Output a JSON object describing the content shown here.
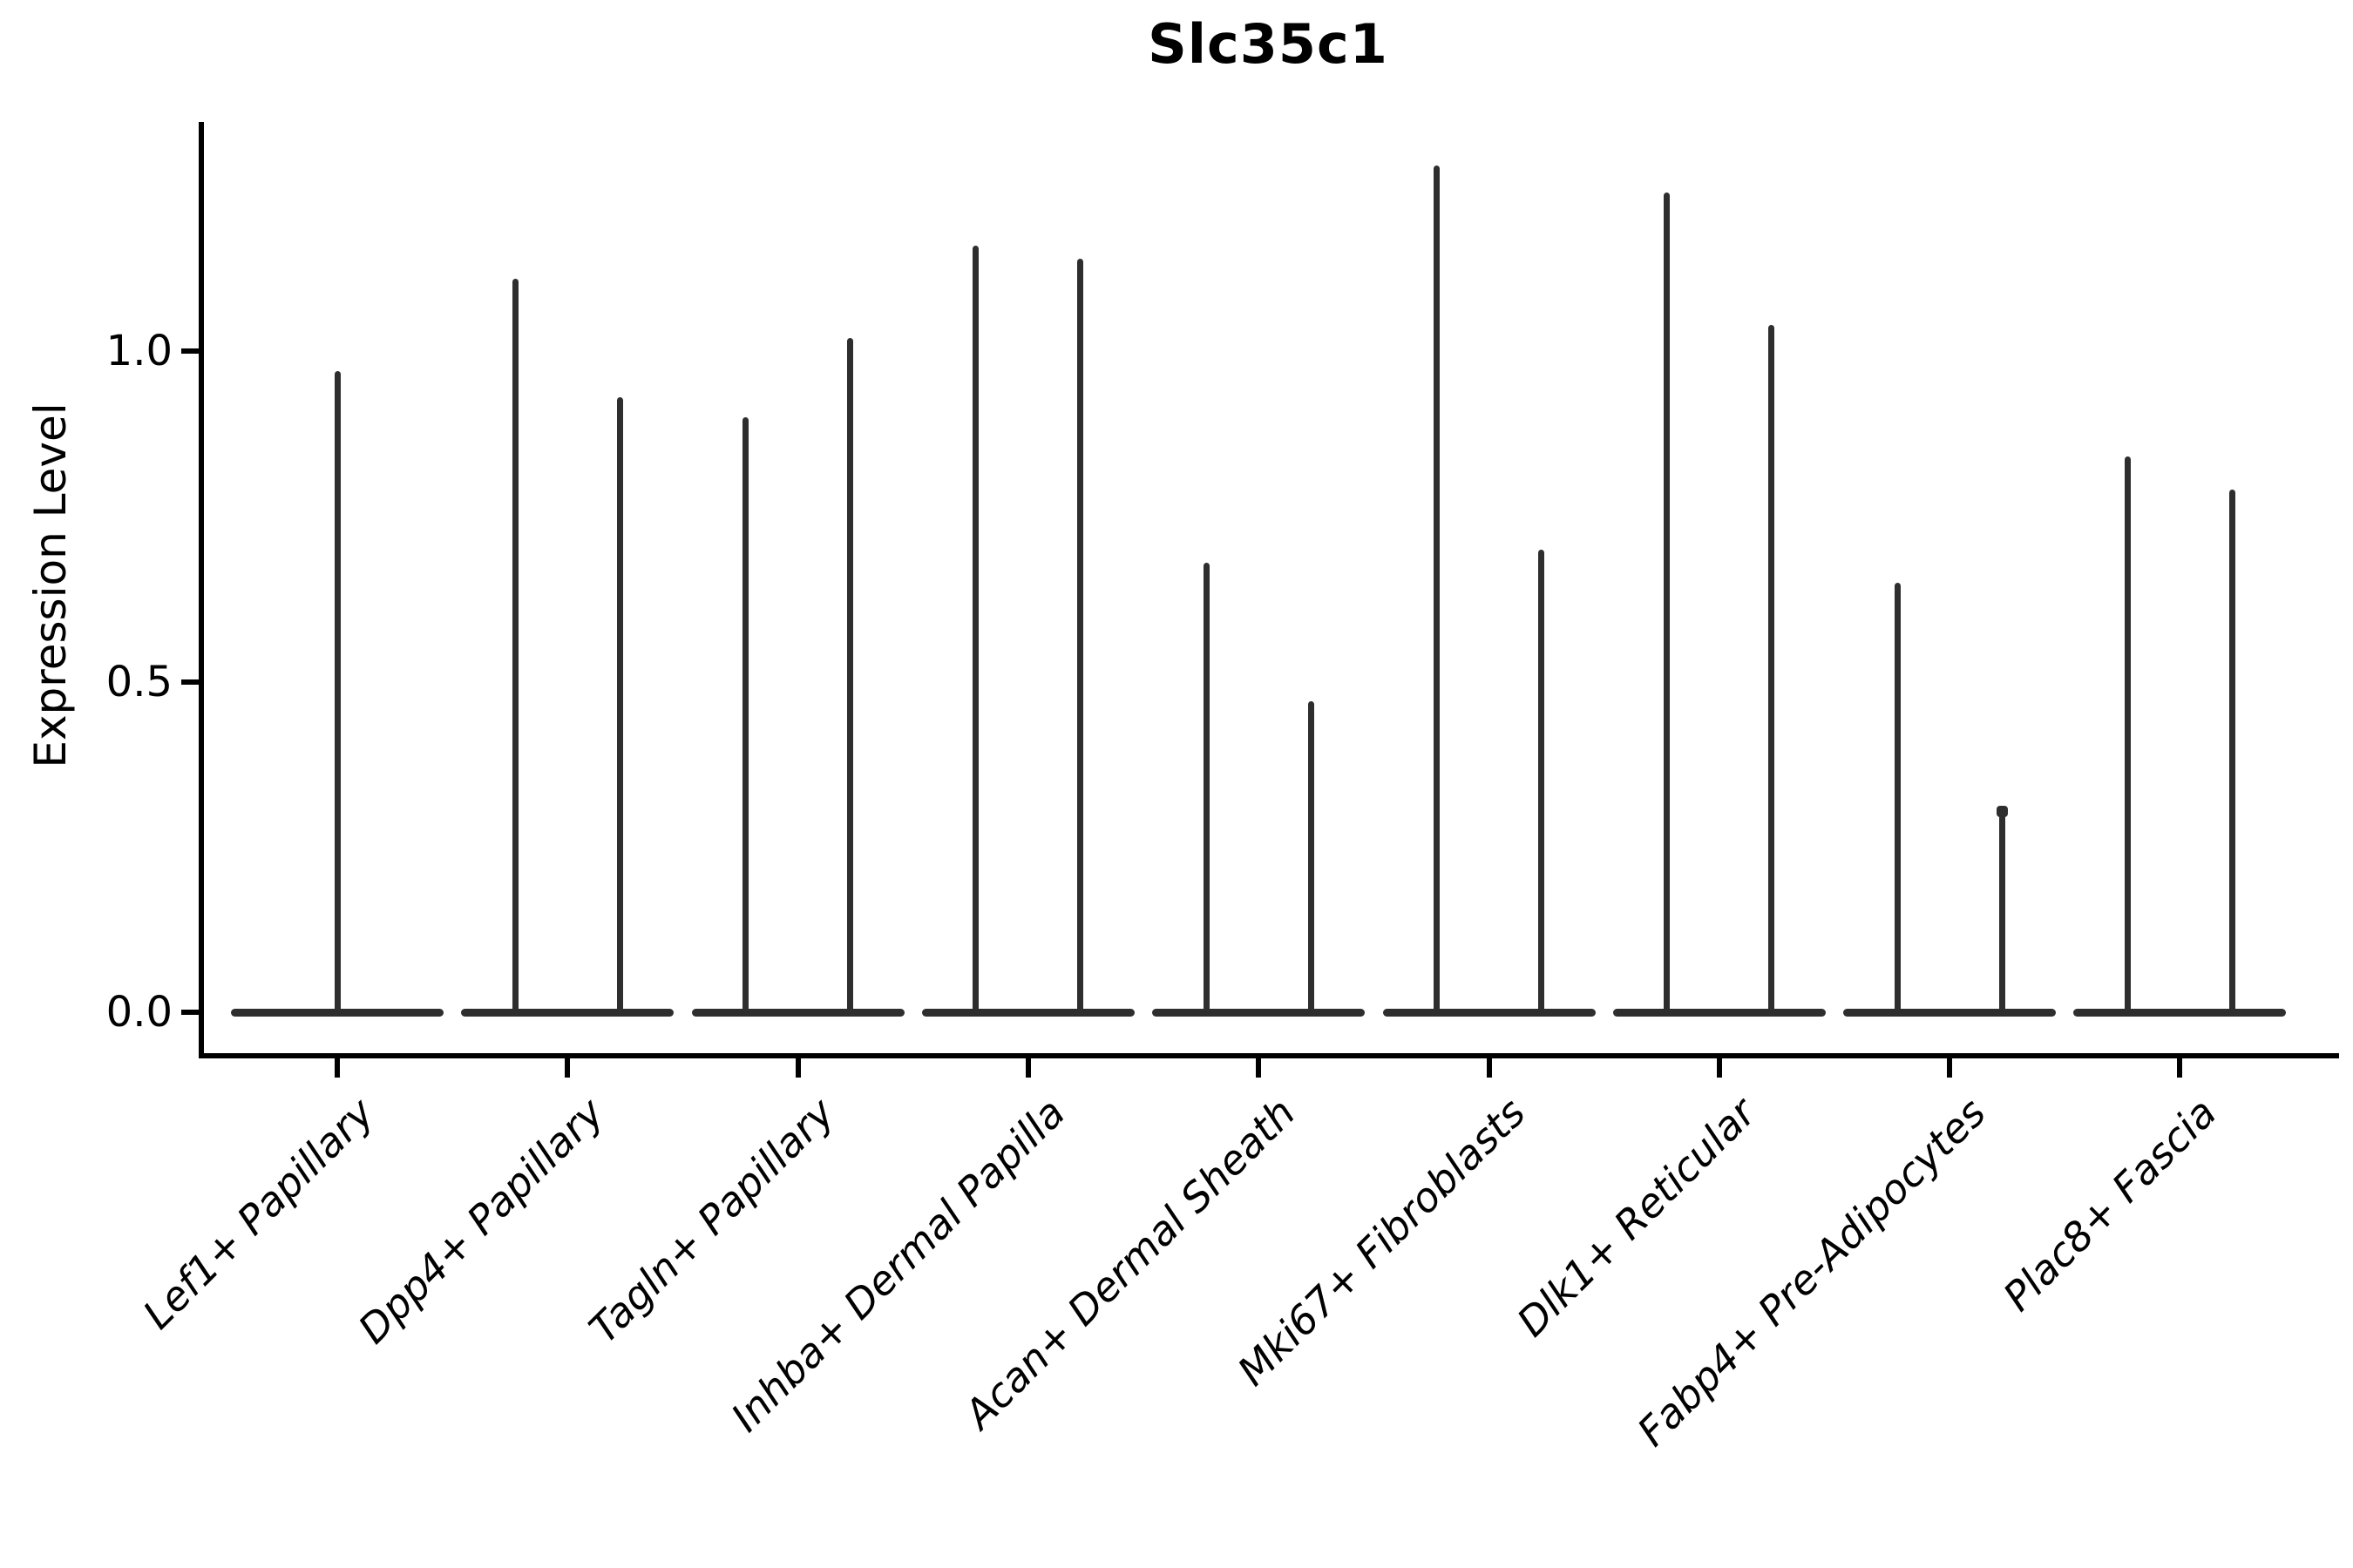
{
  "title": "Slc35c1",
  "chart_data": {
    "type": "violin",
    "title": "Slc35c1",
    "xlabel": "",
    "ylabel": "Expression Level",
    "background": "#ffffff",
    "violin_color": "#2e2e2e",
    "axis_color": "#000000",
    "text_color": "#000000",
    "grid": false,
    "ylim": [
      -0.06,
      1.35
    ],
    "yticks": [
      {
        "label": "0.0",
        "value": 0.0
      },
      {
        "label": "0.5",
        "value": 0.5
      },
      {
        "label": "1.0",
        "value": 1.0
      }
    ],
    "categories": [
      "Lef1+ Papillary",
      "Dpp4+ Papillary",
      "Tagln+ Papillary",
      "Inhba+ Dermal Papilla",
      "Acan+ Dermal Sheath",
      "Mki67+ Fibroblasts",
      "Dlk1+ Reticular",
      "Fabp4+ Pre-Adipocytes",
      "Plac8+ Fascia"
    ],
    "violins": [
      {
        "category": "Lef1+ Papillary",
        "spikes": [
          {
            "pos": "center",
            "max": 0.97
          }
        ]
      },
      {
        "category": "Dpp4+ Papillary",
        "spikes": [
          {
            "pos": "left",
            "max": 1.11
          },
          {
            "pos": "right",
            "max": 0.93
          }
        ]
      },
      {
        "category": "Tagln+ Papillary",
        "spikes": [
          {
            "pos": "left",
            "max": 0.9
          },
          {
            "pos": "right",
            "max": 1.02
          }
        ]
      },
      {
        "category": "Inhba+ Dermal Papilla",
        "spikes": [
          {
            "pos": "left",
            "max": 1.16
          },
          {
            "pos": "right",
            "max": 1.14
          }
        ]
      },
      {
        "category": "Acan+ Dermal Sheath",
        "spikes": [
          {
            "pos": "left",
            "max": 0.68
          },
          {
            "pos": "right",
            "max": 0.47
          }
        ]
      },
      {
        "category": "Mki67+ Fibroblasts",
        "spikes": [
          {
            "pos": "left",
            "max": 1.28
          },
          {
            "pos": "right",
            "max": 0.7
          }
        ]
      },
      {
        "category": "Dlk1+ Reticular",
        "spikes": [
          {
            "pos": "left",
            "max": 1.24
          },
          {
            "pos": "right",
            "max": 1.04
          }
        ]
      },
      {
        "category": "Fabp4+ Pre-Adipocytes",
        "spikes": [
          {
            "pos": "left",
            "max": 0.65
          },
          {
            "pos": "right",
            "max": 0.31,
            "cap": true
          }
        ]
      },
      {
        "category": "Plac8+ Fascia",
        "spikes": [
          {
            "pos": "left",
            "max": 0.84
          },
          {
            "pos": "right",
            "max": 0.79
          }
        ]
      }
    ],
    "baseline_value": 0.0
  }
}
